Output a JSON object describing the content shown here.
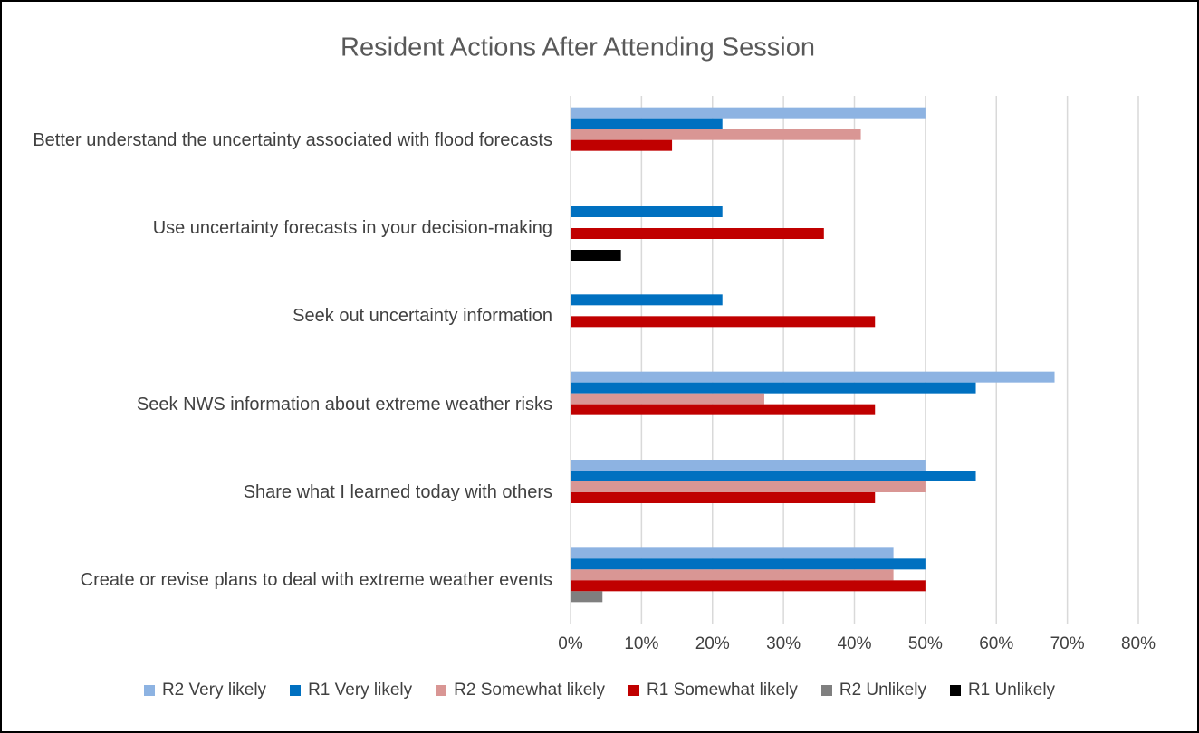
{
  "chart_data": {
    "type": "bar",
    "orientation": "horizontal",
    "title": "Resident Actions After Attending Session",
    "categories": [
      "Better understand the uncertainty associated with flood forecasts",
      "Use uncertainty forecasts in your decision-making",
      "Seek out uncertainty information",
      "Seek NWS information about extreme weather risks",
      "Share what I learned today with others",
      "Create or revise plans to deal with extreme weather events"
    ],
    "series": [
      {
        "name": "R2 Very likely",
        "color": "#8db3e2",
        "values": [
          50,
          0,
          0,
          68.2,
          50,
          45.5
        ]
      },
      {
        "name": "R1 Very likely",
        "color": "#0070c0",
        "values": [
          21.4,
          21.4,
          21.4,
          57.1,
          57.1,
          50
        ]
      },
      {
        "name": "R2 Somewhat likely",
        "color": "#d99694",
        "values": [
          40.9,
          0,
          0,
          27.3,
          50,
          45.5
        ]
      },
      {
        "name": "R1 Somewhat likely",
        "color": "#c00000",
        "values": [
          14.3,
          35.7,
          42.9,
          42.9,
          42.9,
          50
        ]
      },
      {
        "name": "R2 Unlikely",
        "color": "#7f7f7f",
        "values": [
          0,
          0,
          0,
          0,
          0,
          4.5
        ]
      },
      {
        "name": "R1 Unlikely",
        "color": "#000000",
        "values": [
          0,
          7.1,
          0,
          0,
          0,
          0
        ]
      }
    ],
    "xlim": [
      0,
      80
    ],
    "xticks": [
      {
        "value": 0,
        "label": "0%"
      },
      {
        "value": 10,
        "label": "10%"
      },
      {
        "value": 20,
        "label": "20%"
      },
      {
        "value": 30,
        "label": "30%"
      },
      {
        "value": 40,
        "label": "40%"
      },
      {
        "value": 50,
        "label": "50%"
      },
      {
        "value": 60,
        "label": "60%"
      },
      {
        "value": 70,
        "label": "70%"
      },
      {
        "value": 80,
        "label": "80%"
      }
    ],
    "grid": true,
    "legend": "bottom"
  }
}
